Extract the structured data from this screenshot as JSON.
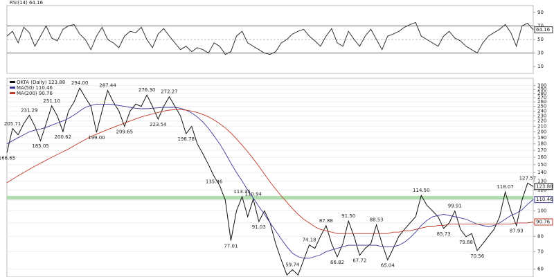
{
  "chart_data": [
    {
      "type": "line",
      "title": "RSI(14) 64.16",
      "ylim": [
        0,
        100
      ],
      "yticks": [
        10,
        30,
        50,
        70,
        90
      ],
      "guides": [
        30,
        50,
        70
      ],
      "grid": false,
      "log": false,
      "series": [
        {
          "name": "RSI(14)",
          "color": "#333333",
          "tag": "64.16",
          "values": [
            55,
            62,
            45,
            68,
            60,
            40,
            55,
            70,
            52,
            48,
            65,
            70,
            72,
            58,
            50,
            35,
            55,
            68,
            50,
            45,
            38,
            55,
            62,
            60,
            68,
            50,
            38,
            58,
            66,
            55,
            45,
            35,
            40,
            32,
            38,
            35,
            30,
            45,
            40,
            28,
            32,
            55,
            62,
            45,
            40,
            35,
            30,
            28,
            32,
            45,
            50,
            58,
            62,
            65,
            55,
            48,
            40,
            55,
            66,
            45,
            40,
            62,
            50,
            40,
            55,
            65,
            50,
            35,
            55,
            58,
            62,
            68,
            72,
            75,
            55,
            50,
            45,
            40,
            55,
            62,
            52,
            48,
            40,
            35,
            30,
            45,
            55,
            60,
            65,
            72,
            60,
            40,
            70,
            74,
            64.16
          ]
        }
      ]
    },
    {
      "type": "line",
      "log": true,
      "grid": true,
      "ylim": [
        56,
        320
      ],
      "yticks": [
        60,
        70,
        80,
        90,
        100,
        110,
        120,
        130,
        140,
        150,
        160,
        170,
        180,
        190,
        200,
        210,
        220,
        230,
        240,
        250,
        260,
        270,
        280,
        290,
        300
      ],
      "band": [
        110.5,
        114
      ],
      "band_color": "#9bd49b",
      "series": [
        {
          "name": "OKTA (Daily) 123.88",
          "color": "#111111",
          "tag": "123.88",
          "values": [
            166.65,
            205.71,
            195,
            215,
            231.29,
            210,
            185.05,
            215,
            251.1,
            230,
            200.62,
            240,
            260,
            294.0,
            270,
            250,
            199.0,
            240,
            287.44,
            260,
            240,
            209.65,
            240,
            255,
            250,
            276.3,
            250,
            223.54,
            250,
            272.27,
            250,
            230,
            196.78,
            210,
            180,
            165,
            150,
            135.46,
            125,
            110,
            77.01,
            100,
            113.35,
            95,
            110.94,
            91.03,
            100,
            90,
            75,
            65,
            57,
            59.74,
            57,
            65,
            74.18,
            72,
            80,
            87.88,
            75,
            66.82,
            75,
            91.5,
            80,
            67.72,
            72,
            75,
            88.53,
            75,
            65.04,
            72,
            80,
            85,
            90,
            95,
            114.5,
            105,
            100,
            95,
            85.73,
            90,
            99.91,
            85,
            79.68,
            82,
            70.56,
            75,
            80,
            85,
            95,
            118.07,
            100,
            87.93,
            110,
            127.57,
            123.88
          ]
        },
        {
          "name": "MA(50) 110.46",
          "color": "#3a3a9a",
          "tag": "110.46",
          "values": [
            180,
            185,
            190,
            195,
            200,
            203,
            205,
            208,
            212,
            216,
            220,
            225,
            232,
            240,
            248,
            252,
            255,
            255,
            255,
            254,
            252,
            250,
            248,
            246,
            245,
            245,
            246,
            247,
            248,
            248,
            248,
            246,
            242,
            236,
            228,
            218,
            206,
            193,
            180,
            166,
            152,
            140,
            130,
            120,
            112,
            104,
            97,
            90,
            84,
            78,
            73,
            69,
            67,
            66,
            66,
            67,
            68,
            70,
            71,
            72,
            73,
            74,
            74,
            74,
            74,
            74,
            74,
            73,
            73,
            73,
            74,
            76,
            79,
            83,
            88,
            92,
            95,
            96,
            97,
            96,
            95,
            94,
            93,
            91,
            89,
            88,
            87,
            88,
            90,
            93,
            96,
            98,
            101,
            106,
            110.46
          ]
        },
        {
          "name": "MA(200) 90.76",
          "color": "#c0392b",
          "tag": "90.76",
          "values": [
            128,
            132,
            136,
            140,
            144,
            148,
            152,
            156,
            160,
            164,
            168,
            172,
            177,
            182,
            187,
            192,
            196,
            200,
            204,
            208,
            212,
            216,
            220,
            224,
            228,
            231,
            234,
            237,
            240,
            242,
            243,
            243,
            242,
            240,
            237,
            233,
            228,
            222,
            215,
            207,
            198,
            188,
            178,
            168,
            158,
            148,
            138,
            129,
            121,
            114,
            108,
            102,
            97,
            93,
            90,
            87,
            85,
            84,
            83,
            82,
            82,
            82,
            82,
            82,
            82,
            82,
            82,
            82,
            82,
            83,
            83,
            84,
            84,
            85,
            86,
            87,
            87,
            88,
            88,
            89,
            89,
            89,
            89,
            89,
            89,
            89,
            89,
            89,
            89,
            89,
            89,
            90,
            90,
            90,
            90.76
          ]
        }
      ],
      "annotations": [
        {
          "value": 166.65,
          "label": "166.65"
        },
        {
          "value": 205.71,
          "label": "205.71"
        },
        {
          "value": 231.29,
          "label": "231.29"
        },
        {
          "value": 185.05,
          "label": "185.05"
        },
        {
          "value": 251.1,
          "label": "251.10"
        },
        {
          "value": 200.62,
          "label": "200.62"
        },
        {
          "value": 294,
          "label": "294.00"
        },
        {
          "value": 199,
          "label": "199.00"
        },
        {
          "value": 287.44,
          "label": "287.44"
        },
        {
          "value": 209.65,
          "label": "209.65"
        },
        {
          "value": 276.3,
          "label": "276.30"
        },
        {
          "value": 223.54,
          "label": "223.54"
        },
        {
          "value": 272.27,
          "label": "272.27"
        },
        {
          "value": 196.78,
          "label": "196.78"
        },
        {
          "value": 135.46,
          "label": "135.46"
        },
        {
          "value": 77.01,
          "label": "77.01"
        },
        {
          "value": 113.35,
          "label": "113.35"
        },
        {
          "value": 110.94,
          "label": "110.94"
        },
        {
          "value": 91.03,
          "label": "91.03"
        },
        {
          "value": 59.74,
          "label": "59.74"
        },
        {
          "value": 74.18,
          "label": "74.18"
        },
        {
          "value": 87.88,
          "label": "87.88"
        },
        {
          "value": 66.82,
          "label": "66.82"
        },
        {
          "value": 91.5,
          "label": "91.50"
        },
        {
          "value": 67.72,
          "label": "67.72"
        },
        {
          "value": 88.53,
          "label": "88.53"
        },
        {
          "value": 65.04,
          "label": "65.04"
        },
        {
          "value": 114.5,
          "label": "114.50"
        },
        {
          "value": 85.73,
          "label": "85.73"
        },
        {
          "value": 99.91,
          "label": "99.91"
        },
        {
          "value": 79.68,
          "label": "79.68"
        },
        {
          "value": 70.56,
          "label": "70.56"
        },
        {
          "value": 118.07,
          "label": "118.07"
        },
        {
          "value": 87.93,
          "label": "87.93"
        },
        {
          "value": 127.57,
          "label": "127.57"
        }
      ]
    }
  ]
}
